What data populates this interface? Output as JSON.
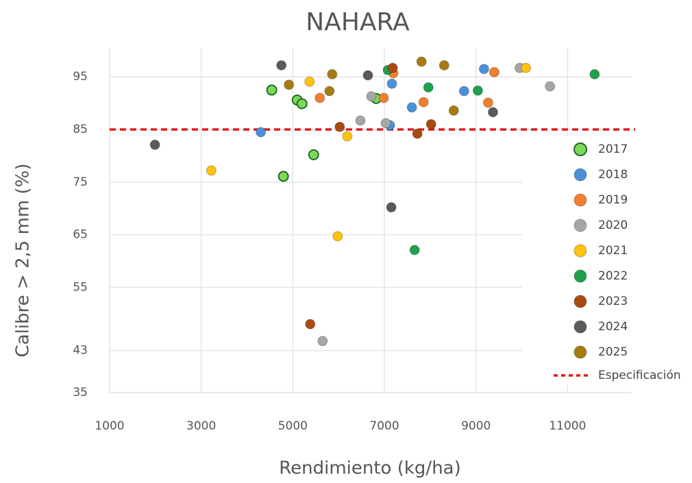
{
  "chart_data": {
    "type": "scatter",
    "title": "NAHARA",
    "x_label": "Rendimiento (kg/ha)",
    "y_label": "Calibre  > 2,5 mm (%)",
    "xlim": [
      1000,
      12400
    ],
    "ylim": [
      35,
      100.5
    ],
    "xticks": [
      1000,
      3000,
      5000,
      7000,
      9000,
      11000
    ],
    "yticks": [
      95,
      85,
      75,
      65,
      55,
      43,
      35
    ],
    "grid": true,
    "legend": "right",
    "reference_line": {
      "name": "Especificación",
      "value": 85,
      "color": "#e31a1c"
    },
    "series": [
      {
        "name": "2017",
        "color": "#7ed957",
        "x": [
          4540,
          5095,
          5200,
          5455,
          4795,
          6820
        ],
        "values": [
          92.5,
          90.6,
          89.9,
          80.2,
          76.1,
          90.9
        ]
      },
      {
        "name": "2018",
        "color": "#4a90d9",
        "x": [
          4300,
          7165,
          7600,
          8740,
          9175,
          7120
        ],
        "values": [
          84.5,
          93.7,
          89.2,
          92.3,
          96.5,
          85.8
        ]
      },
      {
        "name": "2019",
        "color": "#f07f2e",
        "x": [
          5590,
          6985,
          7195,
          7855,
          9265,
          9400
        ],
        "values": [
          91.0,
          91.0,
          95.7,
          90.2,
          90.1,
          95.9
        ]
      },
      {
        "name": "2020",
        "color": "#a6a6a6",
        "x": [
          5650,
          6475,
          6715,
          7030,
          9955,
          10615
        ],
        "values": [
          44.8,
          86.7,
          91.3,
          86.2,
          96.7,
          93.2
        ]
      },
      {
        "name": "2021",
        "color": "#ffc20e",
        "x": [
          3220,
          5365,
          5980,
          6190,
          10090
        ],
        "values": [
          77.2,
          94.1,
          64.7,
          83.7,
          96.7
        ]
      },
      {
        "name": "2022",
        "color": "#1fa04b",
        "x": [
          7075,
          7660,
          7960,
          9040,
          11590
        ],
        "values": [
          96.3,
          62.1,
          93.0,
          92.4,
          95.5
        ]
      },
      {
        "name": "2023",
        "color": "#a84a12",
        "x": [
          5380,
          6025,
          7180,
          7720,
          8020
        ],
        "values": [
          48.0,
          85.5,
          96.7,
          84.2,
          86.0
        ]
      },
      {
        "name": "2024",
        "color": "#5a5a5a",
        "x": [
          1990,
          4750,
          6640,
          7150,
          9370
        ],
        "values": [
          82.1,
          97.2,
          95.3,
          70.2,
          88.3
        ]
      },
      {
        "name": "2025",
        "color": "#a67c12",
        "x": [
          4915,
          5860,
          5800,
          7810,
          8305,
          8515
        ],
        "values": [
          93.5,
          95.5,
          92.3,
          97.9,
          97.2,
          88.6
        ]
      }
    ]
  }
}
